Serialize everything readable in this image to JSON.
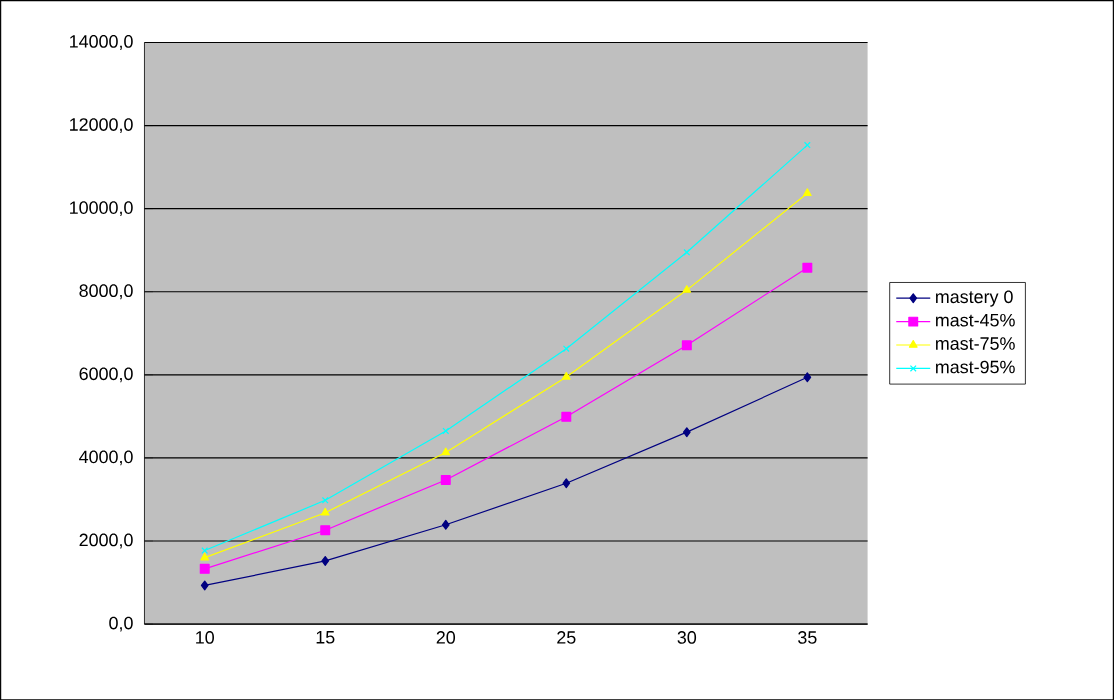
{
  "chart_data": {
    "type": "line",
    "categories": [
      "10",
      "15",
      "20",
      "25",
      "30",
      "35"
    ],
    "series": [
      {
        "name": "mastery 0",
        "color": "#000080",
        "marker": "diamond",
        "values": [
          930,
          1520,
          2390,
          3390,
          4620,
          5940
        ]
      },
      {
        "name": "mast-45%",
        "color": "#ff00ff",
        "marker": "square",
        "values": [
          1330,
          2260,
          3470,
          4990,
          6710,
          8580
        ]
      },
      {
        "name": "mast-75%",
        "color": "#ffff00",
        "marker": "triangle",
        "values": [
          1600,
          2680,
          4130,
          5950,
          8040,
          10370
        ]
      },
      {
        "name": "mast-95%",
        "color": "#00ffff",
        "marker": "cross",
        "values": [
          1770,
          2980,
          4650,
          6630,
          8950,
          11530
        ]
      }
    ],
    "ylim": [
      0,
      14000
    ],
    "yticks": [
      {
        "value": 0,
        "label": "0,0"
      },
      {
        "value": 2000,
        "label": "2000,0"
      },
      {
        "value": 4000,
        "label": "4000,0"
      },
      {
        "value": 6000,
        "label": "6000,0"
      },
      {
        "value": 8000,
        "label": "8000,0"
      },
      {
        "value": 10000,
        "label": "10000,0"
      },
      {
        "value": 12000,
        "label": "12000,0"
      },
      {
        "value": 14000,
        "label": "14000,0"
      }
    ],
    "grid": "y",
    "legend": "right",
    "line_style": "solid"
  }
}
